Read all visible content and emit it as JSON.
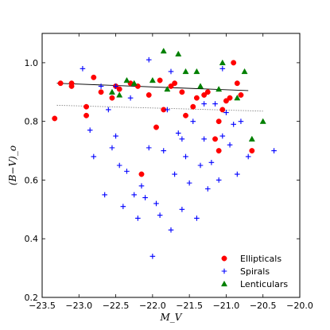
{
  "chart_data": {
    "type": "scatter",
    "title": "",
    "xlabel": "M_V",
    "ylabel": "(B−V)_o",
    "xlim": [
      -23.5,
      -20.0
    ],
    "ylim": [
      0.2,
      1.1
    ],
    "xticks": [
      -23.5,
      -23.0,
      -22.5,
      -22.0,
      -21.5,
      -21.0,
      -20.5,
      -20.0
    ],
    "xtick_labels": [
      "−23.5",
      "−23.0",
      "−22.5",
      "−22.0",
      "−21.5",
      "−21.0",
      "−20.5",
      "−20.0"
    ],
    "yticks": [
      0.2,
      0.4,
      0.6,
      0.8,
      1.0
    ],
    "ytick_labels": [
      "0.2",
      "0.4",
      "0.6",
      "0.8",
      "1.0"
    ],
    "grid": false,
    "legend_position": "bottom-right",
    "series": [
      {
        "name": "Ellipticals",
        "marker": "circle",
        "color": "#ff0000",
        "points": [
          [
            -23.33,
            0.81
          ],
          [
            -23.25,
            0.93
          ],
          [
            -23.1,
            0.93
          ],
          [
            -23.1,
            0.92
          ],
          [
            -22.9,
            0.85
          ],
          [
            -22.9,
            0.82
          ],
          [
            -22.8,
            0.95
          ],
          [
            -22.7,
            0.9
          ],
          [
            -22.55,
            0.88
          ],
          [
            -22.5,
            0.92
          ],
          [
            -22.45,
            0.91
          ],
          [
            -22.3,
            0.93
          ],
          [
            -22.2,
            0.92
          ],
          [
            -22.15,
            0.62
          ],
          [
            -22.05,
            0.89
          ],
          [
            -21.95,
            0.78
          ],
          [
            -21.9,
            0.94
          ],
          [
            -21.85,
            0.84
          ],
          [
            -21.75,
            0.92
          ],
          [
            -21.7,
            0.93
          ],
          [
            -21.6,
            0.9
          ],
          [
            -21.55,
            0.82
          ],
          [
            -21.45,
            0.85
          ],
          [
            -21.4,
            0.88
          ],
          [
            -21.3,
            0.89
          ],
          [
            -21.25,
            0.9
          ],
          [
            -21.15,
            0.74
          ],
          [
            -21.1,
            0.7
          ],
          [
            -21.1,
            0.8
          ],
          [
            -21.05,
            0.84
          ],
          [
            -21.0,
            0.87
          ],
          [
            -20.95,
            0.88
          ],
          [
            -20.9,
            1.0
          ],
          [
            -20.85,
            0.93
          ],
          [
            -20.8,
            0.89
          ],
          [
            -20.65,
            0.7
          ]
        ]
      },
      {
        "name": "Spirals",
        "marker": "plus",
        "color": "#0000ff",
        "points": [
          [
            -22.95,
            0.98
          ],
          [
            -22.85,
            0.77
          ],
          [
            -22.8,
            0.68
          ],
          [
            -22.7,
            0.92
          ],
          [
            -22.65,
            0.55
          ],
          [
            -22.6,
            0.84
          ],
          [
            -22.55,
            0.71
          ],
          [
            -22.5,
            0.92
          ],
          [
            -22.5,
            0.75
          ],
          [
            -22.45,
            0.65
          ],
          [
            -22.4,
            0.51
          ],
          [
            -22.35,
            0.63
          ],
          [
            -22.3,
            0.88
          ],
          [
            -22.25,
            0.55
          ],
          [
            -22.2,
            0.47
          ],
          [
            -22.15,
            0.58
          ],
          [
            -22.1,
            0.54
          ],
          [
            -22.05,
            0.71
          ],
          [
            -22.0,
            0.34
          ],
          [
            -21.95,
            0.52
          ],
          [
            -21.9,
            0.48
          ],
          [
            -21.85,
            0.7
          ],
          [
            -21.8,
            0.84
          ],
          [
            -21.75,
            0.43
          ],
          [
            -21.7,
            0.62
          ],
          [
            -21.65,
            0.76
          ],
          [
            -21.6,
            0.5
          ],
          [
            -21.55,
            0.68
          ],
          [
            -21.5,
            0.59
          ],
          [
            -21.45,
            0.8
          ],
          [
            -21.4,
            0.47
          ],
          [
            -21.35,
            0.65
          ],
          [
            -21.3,
            0.74
          ],
          [
            -21.25,
            0.57
          ],
          [
            -21.2,
            0.66
          ],
          [
            -21.15,
            0.86
          ],
          [
            -21.1,
            0.6
          ],
          [
            -21.05,
            0.75
          ],
          [
            -21.0,
            0.83
          ],
          [
            -20.95,
            0.72
          ],
          [
            -20.9,
            0.79
          ],
          [
            -20.85,
            0.62
          ],
          [
            -20.8,
            0.8
          ],
          [
            -20.7,
            0.68
          ],
          [
            -20.35,
            0.7
          ],
          [
            -22.05,
            1.01
          ],
          [
            -21.75,
            0.97
          ],
          [
            -21.6,
            0.74
          ],
          [
            -21.3,
            0.86
          ],
          [
            -21.05,
            0.98
          ]
        ]
      },
      {
        "name": "Lenticulars",
        "marker": "triangle",
        "color": "#008000",
        "points": [
          [
            -22.55,
            0.9
          ],
          [
            -22.45,
            0.89
          ],
          [
            -22.35,
            0.94
          ],
          [
            -22.25,
            0.93
          ],
          [
            -22.0,
            0.94
          ],
          [
            -21.85,
            1.04
          ],
          [
            -21.8,
            0.91
          ],
          [
            -21.65,
            1.03
          ],
          [
            -21.55,
            0.97
          ],
          [
            -21.4,
            0.97
          ],
          [
            -21.35,
            0.92
          ],
          [
            -21.1,
            0.91
          ],
          [
            -21.05,
            1.0
          ],
          [
            -20.85,
            0.88
          ],
          [
            -20.75,
            0.97
          ],
          [
            -20.65,
            0.74
          ],
          [
            -20.5,
            0.8
          ]
        ]
      }
    ],
    "fit_lines": [
      {
        "style": "solid",
        "color": "#000000",
        "x": [
          -23.3,
          -20.7
        ],
        "y": [
          0.93,
          0.905
        ]
      },
      {
        "style": "dotted",
        "color": "#888888",
        "x": [
          -23.3,
          -20.5
        ],
        "y": [
          0.855,
          0.835
        ]
      }
    ]
  }
}
